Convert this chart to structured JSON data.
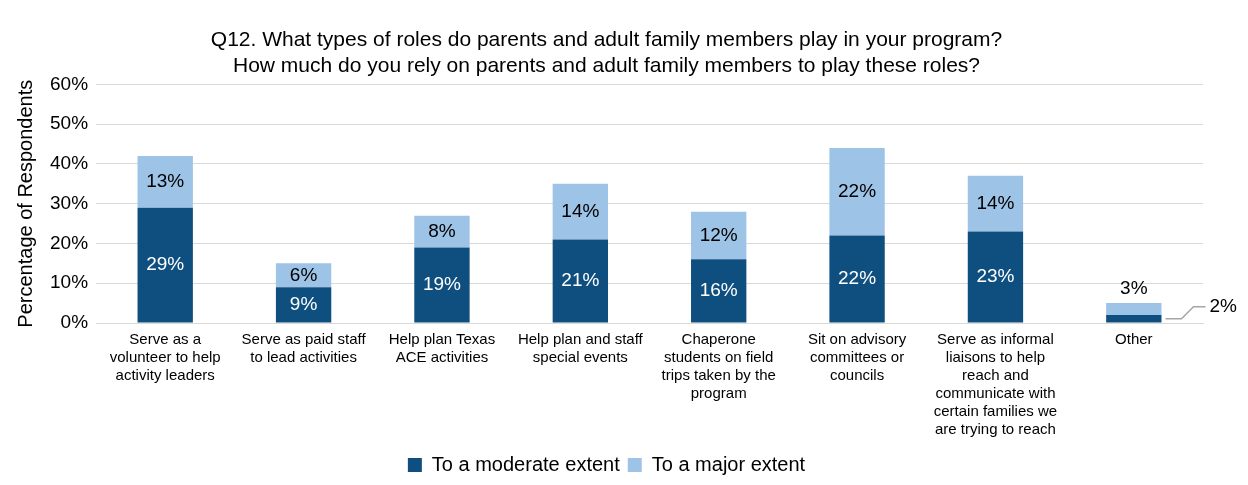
{
  "chart_data": {
    "type": "bar",
    "stacked": true,
    "title": [
      "Q12. What types of roles do parents and adult family members play in your program?",
      "How much do you rely on parents and adult family members to play these roles?"
    ],
    "ylabel": "Percentage of Respondents",
    "categories": [
      "Serve as a volunteer to help activity leaders",
      "Serve as paid staff to lead activities",
      "Help plan Texas ACE activities",
      "Help plan and staff special events",
      "Chaperone students on field trips taken by the program",
      "Sit on advisory committees or councils",
      "Serve as informal liaisons to help reach and communicate with certain families we are trying to reach",
      "Other"
    ],
    "series": [
      {
        "name": "To a moderate extent",
        "color": "#0f4f7f",
        "values": [
          29,
          9,
          19,
          21,
          16,
          22,
          23,
          2
        ],
        "value_labels": [
          "29%",
          "9%",
          "19%",
          "21%",
          "16%",
          "22%",
          "23%",
          "2%"
        ]
      },
      {
        "name": "To a major extent",
        "color": "#9dc3e6",
        "values": [
          13,
          6,
          8,
          14,
          12,
          22,
          14,
          3
        ],
        "value_labels": [
          "13%",
          "6%",
          "8%",
          "14%",
          "12%",
          "22%",
          "14%",
          "3%"
        ]
      }
    ],
    "ylim": [
      0,
      60
    ],
    "yticks": [
      {
        "value": 0,
        "label": "0%"
      },
      {
        "value": 10,
        "label": "10%"
      },
      {
        "value": 20,
        "label": "20%"
      },
      {
        "value": 30,
        "label": "30%"
      },
      {
        "value": 40,
        "label": "40%"
      },
      {
        "value": 50,
        "label": "50%"
      },
      {
        "value": 60,
        "label": "60%"
      }
    ],
    "grid": "y",
    "legend": "bottom"
  }
}
